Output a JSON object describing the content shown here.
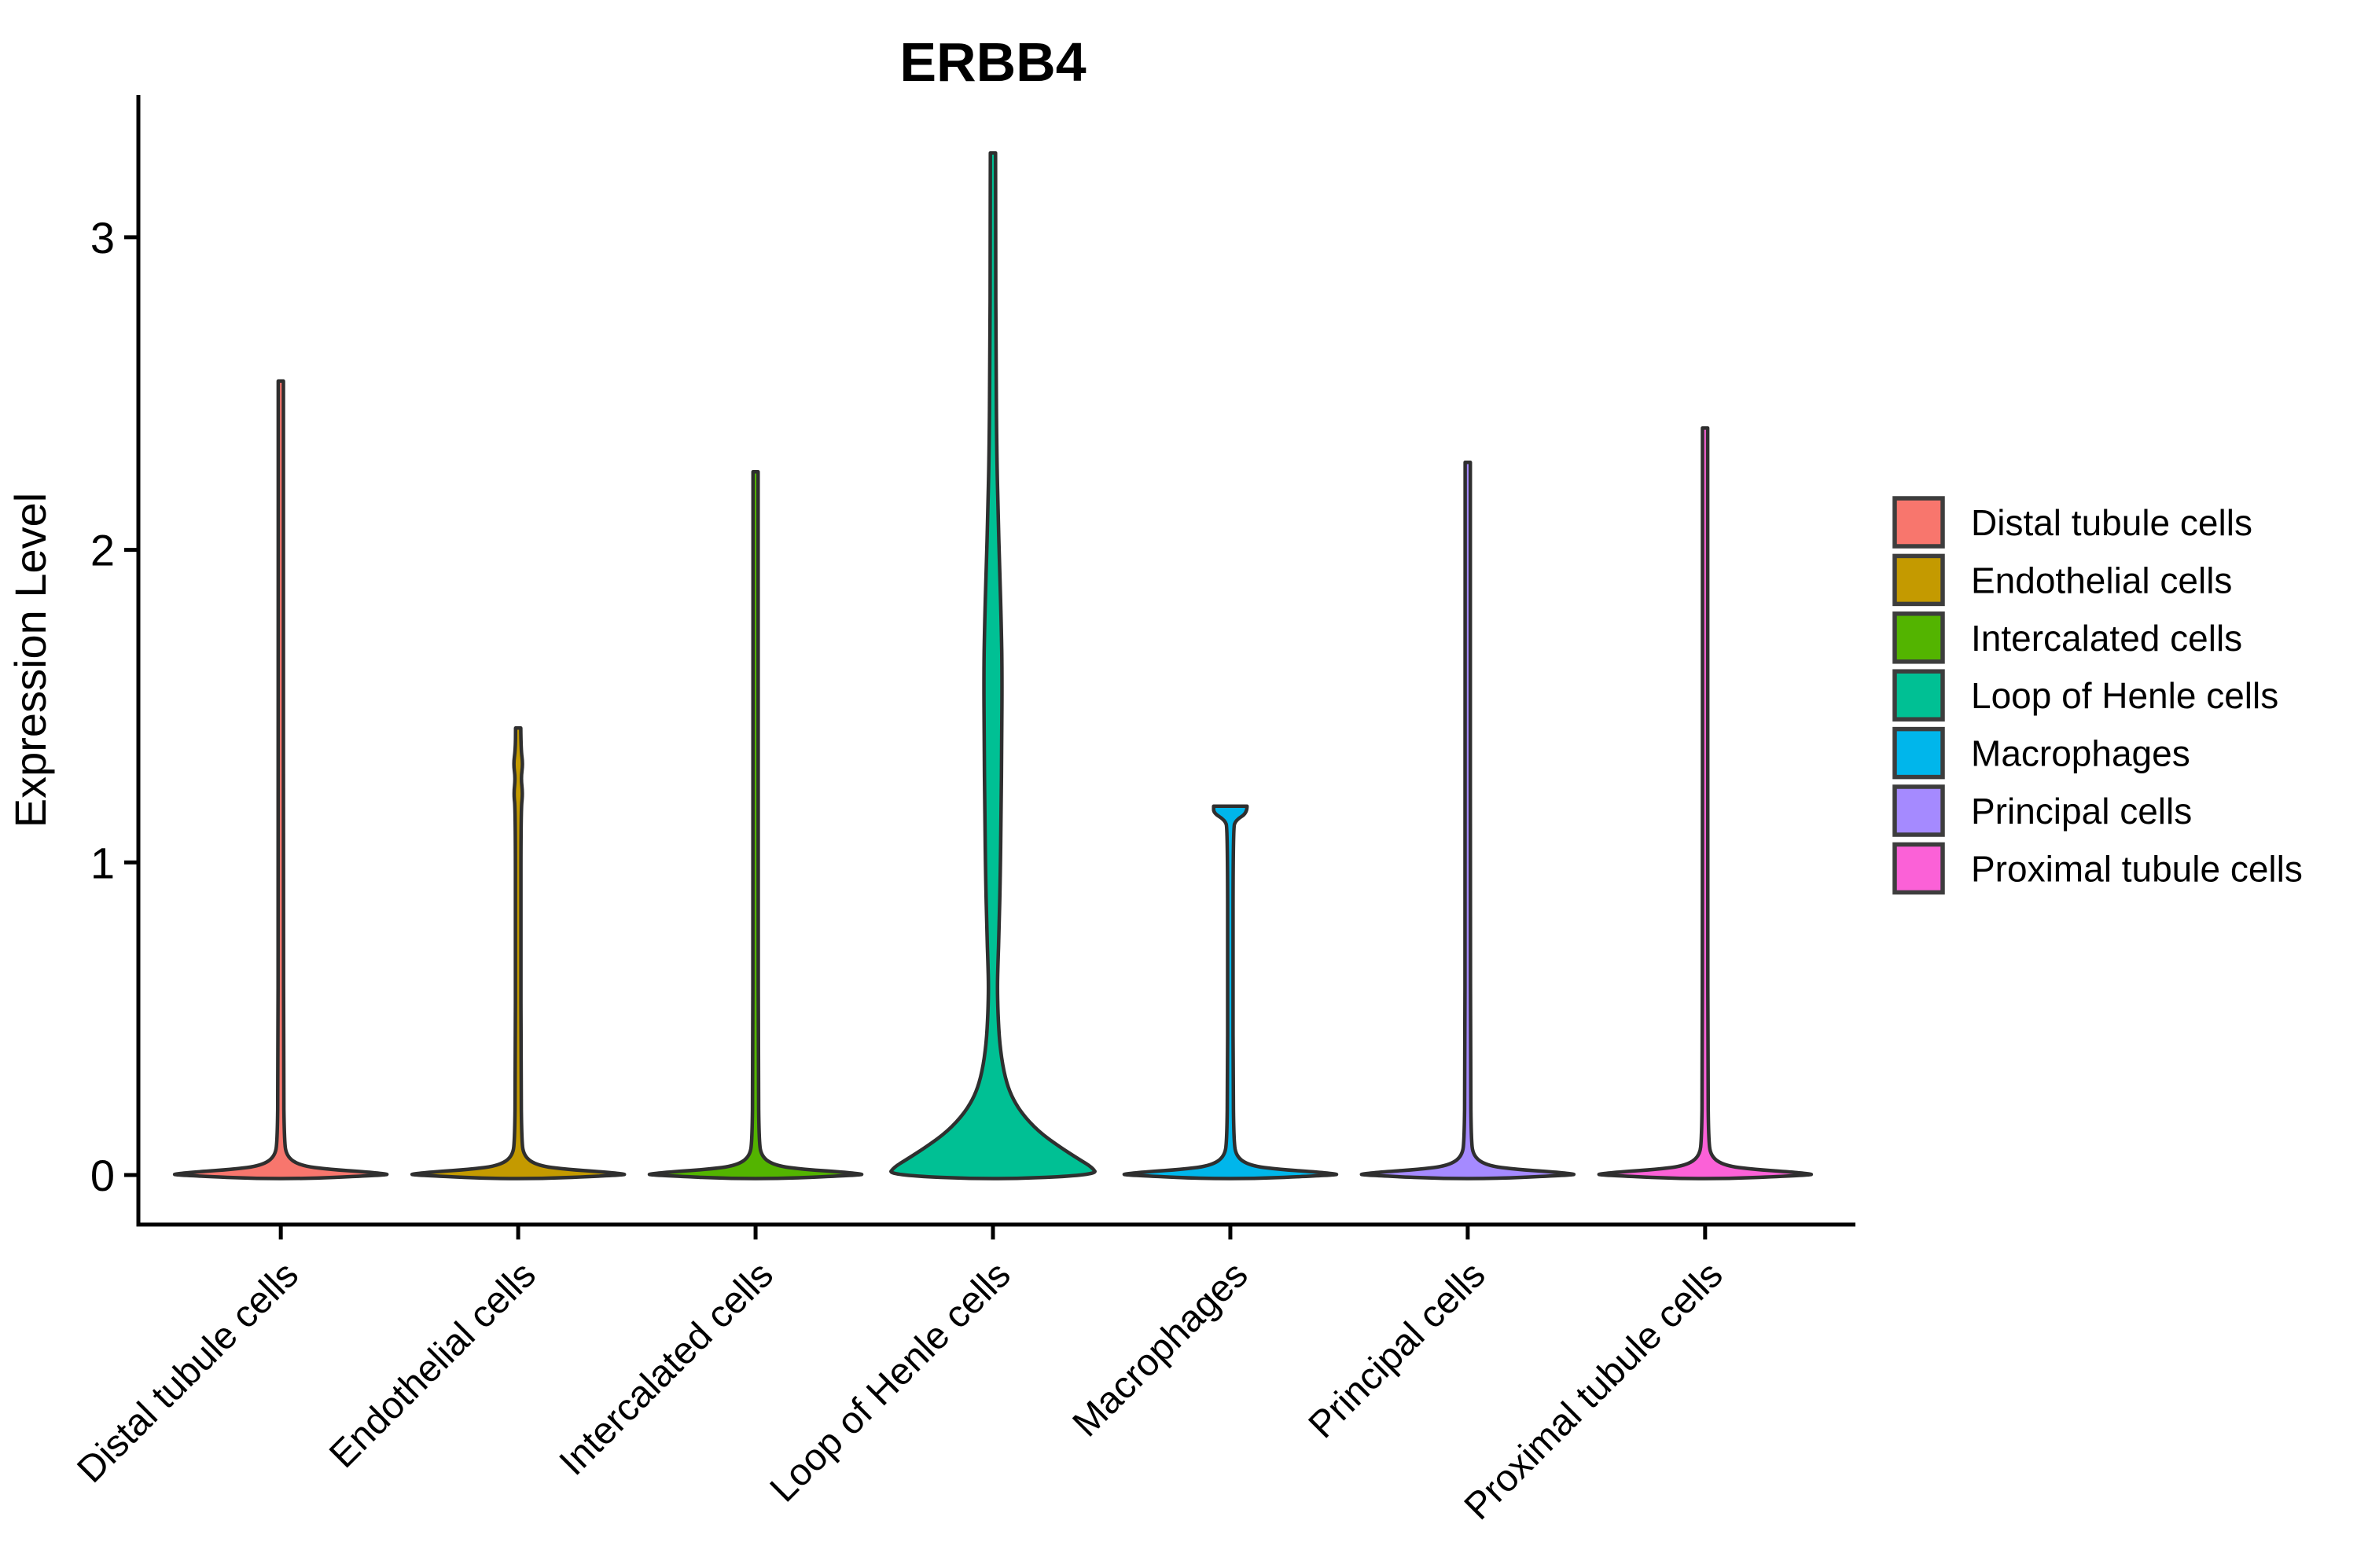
{
  "title": "ERBB4",
  "y_axis": {
    "label": "Expression Level",
    "tick_labels": [
      "0",
      "1",
      "2",
      "3"
    ]
  },
  "x_axis": {
    "tick_labels": [
      "Distal tubule cells",
      "Endothelial cells",
      "Intercalated cells",
      "Loop of Henle cells",
      "Macrophages",
      "Principal cells",
      "Proximal tubule cells"
    ]
  },
  "legend": {
    "entries": [
      {
        "label": "Distal tubule cells",
        "color": "#F8766D"
      },
      {
        "label": "Endothelial cells",
        "color": "#C49A00"
      },
      {
        "label": "Intercalated cells",
        "color": "#53B400"
      },
      {
        "label": "Loop of Henle cells",
        "color": "#00C094"
      },
      {
        "label": "Macrophages",
        "color": "#00B6EB"
      },
      {
        "label": "Principal cells",
        "color": "#A58AFF"
      },
      {
        "label": "Proximal tubule cells",
        "color": "#FB61D7"
      }
    ]
  },
  "style_colors": {
    "violin_outline": "#2F2F2F",
    "axis": "#000000",
    "swatch_border": "#3D3D3D"
  },
  "chart_data": {
    "type": "violin",
    "title": "ERBB4",
    "xlabel": "",
    "ylabel": "Expression Level",
    "ylim": [
      -0.17,
      3.46
    ],
    "yticks": [
      0,
      1,
      2,
      3
    ],
    "grid": false,
    "legend_position": "right",
    "categories": [
      "Distal tubule cells",
      "Endothelial cells",
      "Intercalated cells",
      "Loop of Henle cells",
      "Macrophages",
      "Principal cells",
      "Proximal tubule cells"
    ],
    "series": [
      {
        "name": "Distal tubule cells",
        "color": "#F8766D",
        "max_expression": 2.54,
        "dominant_mode": 0,
        "profile": [
          [
            2.54,
            0.024
          ],
          [
            1.8,
            0.024
          ],
          [
            0.9,
            0.025
          ],
          [
            0.3,
            0.026
          ],
          [
            0.12,
            0.032
          ],
          [
            0.06,
            0.05
          ],
          [
            0.03,
            0.18
          ],
          [
            0.018,
            0.45
          ],
          [
            0.01,
            0.78
          ],
          [
            0.004,
            0.97
          ],
          [
            0.0,
            1.0
          ]
        ]
      },
      {
        "name": "Endothelial cells",
        "color": "#C49A00",
        "max_expression": 1.43,
        "dominant_mode": 0,
        "profile": [
          [
            1.43,
            0.024
          ],
          [
            1.36,
            0.026
          ],
          [
            1.315,
            0.044
          ],
          [
            1.27,
            0.026
          ],
          [
            1.22,
            0.042
          ],
          [
            1.17,
            0.026
          ],
          [
            0.8,
            0.025
          ],
          [
            0.3,
            0.026
          ],
          [
            0.12,
            0.032
          ],
          [
            0.06,
            0.05
          ],
          [
            0.03,
            0.18
          ],
          [
            0.018,
            0.45
          ],
          [
            0.01,
            0.78
          ],
          [
            0.004,
            0.97
          ],
          [
            0.0,
            1.0
          ]
        ]
      },
      {
        "name": "Intercalated cells",
        "color": "#53B400",
        "max_expression": 2.25,
        "dominant_mode": 0,
        "profile": [
          [
            2.25,
            0.024
          ],
          [
            1.6,
            0.024
          ],
          [
            0.9,
            0.025
          ],
          [
            0.3,
            0.026
          ],
          [
            0.12,
            0.032
          ],
          [
            0.06,
            0.05
          ],
          [
            0.03,
            0.18
          ],
          [
            0.018,
            0.45
          ],
          [
            0.01,
            0.78
          ],
          [
            0.004,
            0.97
          ],
          [
            0.0,
            1.0
          ]
        ]
      },
      {
        "name": "Loop of Henle cells",
        "color": "#00C094",
        "max_expression": 3.27,
        "dominant_mode": 0,
        "profile": [
          [
            3.27,
            0.024
          ],
          [
            3.0,
            0.025
          ],
          [
            2.6,
            0.028
          ],
          [
            2.3,
            0.036
          ],
          [
            2.11,
            0.048
          ],
          [
            1.95,
            0.062
          ],
          [
            1.75,
            0.078
          ],
          [
            1.6,
            0.085
          ],
          [
            1.4,
            0.082
          ],
          [
            1.15,
            0.075
          ],
          [
            0.95,
            0.068
          ],
          [
            0.78,
            0.056
          ],
          [
            0.68,
            0.047
          ],
          [
            0.6,
            0.041
          ],
          [
            0.52,
            0.046
          ],
          [
            0.42,
            0.062
          ],
          [
            0.33,
            0.1
          ],
          [
            0.26,
            0.16
          ],
          [
            0.2,
            0.26
          ],
          [
            0.14,
            0.42
          ],
          [
            0.09,
            0.62
          ],
          [
            0.05,
            0.8
          ],
          [
            0.025,
            0.92
          ],
          [
            0.0,
            0.97
          ]
        ]
      },
      {
        "name": "Macrophages",
        "color": "#00B6EB",
        "max_expression": 1.18,
        "dominant_mode": 0,
        "profile": [
          [
            1.18,
            0.155
          ],
          [
            1.158,
            0.155
          ],
          [
            1.135,
            0.05
          ],
          [
            1.11,
            0.026
          ],
          [
            0.6,
            0.025
          ],
          [
            0.3,
            0.026
          ],
          [
            0.12,
            0.032
          ],
          [
            0.06,
            0.05
          ],
          [
            0.03,
            0.18
          ],
          [
            0.018,
            0.45
          ],
          [
            0.01,
            0.78
          ],
          [
            0.004,
            0.97
          ],
          [
            0.0,
            1.0
          ]
        ]
      },
      {
        "name": "Principal cells",
        "color": "#A58AFF",
        "max_expression": 2.28,
        "dominant_mode": 0,
        "profile": [
          [
            2.28,
            0.024
          ],
          [
            1.6,
            0.024
          ],
          [
            0.9,
            0.025
          ],
          [
            0.3,
            0.026
          ],
          [
            0.12,
            0.032
          ],
          [
            0.06,
            0.05
          ],
          [
            0.03,
            0.18
          ],
          [
            0.018,
            0.45
          ],
          [
            0.01,
            0.78
          ],
          [
            0.004,
            0.97
          ],
          [
            0.0,
            1.0
          ]
        ]
      },
      {
        "name": "Proximal tubule cells",
        "color": "#FB61D7",
        "max_expression": 2.39,
        "dominant_mode": 0,
        "profile": [
          [
            2.39,
            0.024
          ],
          [
            1.7,
            0.024
          ],
          [
            0.9,
            0.025
          ],
          [
            0.3,
            0.026
          ],
          [
            0.12,
            0.032
          ],
          [
            0.06,
            0.05
          ],
          [
            0.03,
            0.18
          ],
          [
            0.018,
            0.45
          ],
          [
            0.01,
            0.78
          ],
          [
            0.004,
            0.97
          ],
          [
            0.0,
            1.0
          ]
        ]
      }
    ]
  }
}
